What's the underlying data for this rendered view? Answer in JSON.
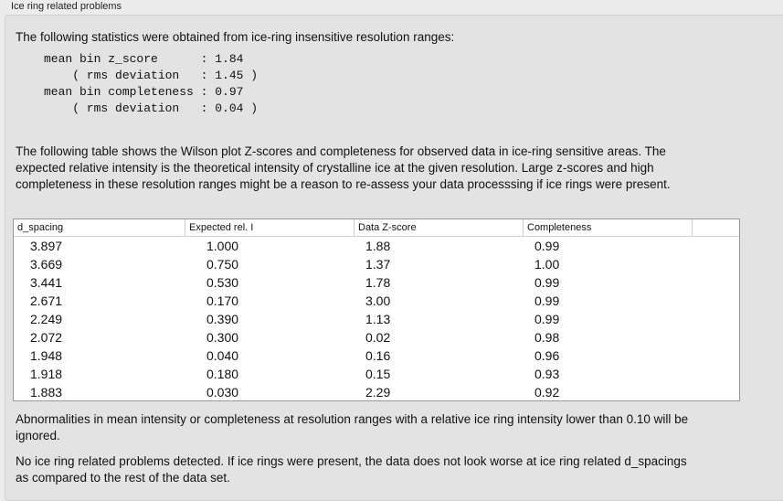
{
  "title": "Ice ring related problems",
  "intro": "The following statistics were obtained from ice-ring insensitive resolution ranges:",
  "stats": "mean bin z_score      : 1.84\n    ( rms deviation   : 1.45 )\nmean bin completeness : 0.97\n    ( rms deviation   : 0.04 )",
  "table_intro": "The following table shows the Wilson plot Z-scores and completeness for observed data in ice-ring sensitive areas. The expected relative intensity is the theoretical intensity of crystalline ice at the given resolution. Large z-scores and high completeness in these resolution ranges might be a reason to re-assess your data processsing if ice rings were present.",
  "table": {
    "headers": [
      "d_spacing",
      "Expected rel. I",
      "Data Z-score",
      "Completeness"
    ],
    "rows": [
      [
        "3.897",
        "1.000",
        "1.88",
        "0.99"
      ],
      [
        "3.669",
        "0.750",
        "1.37",
        "1.00"
      ],
      [
        "3.441",
        "0.530",
        "1.78",
        "0.99"
      ],
      [
        "2.671",
        "0.170",
        "3.00",
        "0.99"
      ],
      [
        "2.249",
        "0.390",
        "1.13",
        "0.99"
      ],
      [
        "2.072",
        "0.300",
        "0.02",
        "0.98"
      ],
      [
        "1.948",
        "0.040",
        "0.16",
        "0.96"
      ],
      [
        "1.918",
        "0.180",
        "0.15",
        "0.93"
      ],
      [
        "1.883",
        "0.030",
        "2.29",
        "0.92"
      ]
    ]
  },
  "note": "Abnormalities in mean intensity or completeness at resolution ranges with a relative ice ring intensity lower than 0.10 will be ignored.",
  "conclusion": "No ice ring related problems detected. If ice rings were present, the data does not look worse at ice ring related d_spacings as compared to the rest of the data set."
}
